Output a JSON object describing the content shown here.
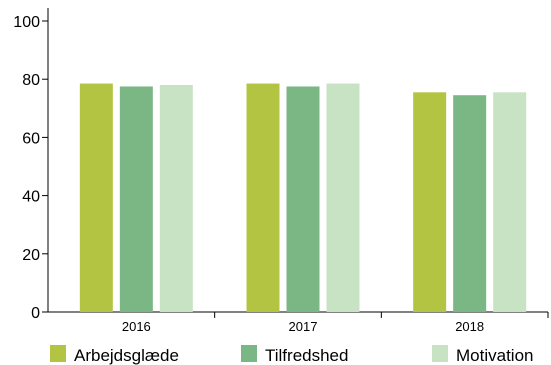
{
  "chart_data": {
    "type": "bar",
    "categories": [
      "2016",
      "2017",
      "2018"
    ],
    "series": [
      {
        "name": "Arbejdsglæde",
        "color": "#b3c443",
        "values": [
          78.5,
          78.5,
          75.5
        ]
      },
      {
        "name": "Tilfredshed",
        "color": "#7ab784",
        "values": [
          77.5,
          77.5,
          74.5
        ]
      },
      {
        "name": "Motivation",
        "color": "#c8e3c4",
        "values": [
          78.0,
          78.5,
          75.5
        ]
      }
    ],
    "ylim": [
      0,
      100
    ],
    "yticks": [
      "0",
      "20",
      "40",
      "60",
      "80",
      "100"
    ],
    "grid": false,
    "legend_position": "bottom"
  }
}
